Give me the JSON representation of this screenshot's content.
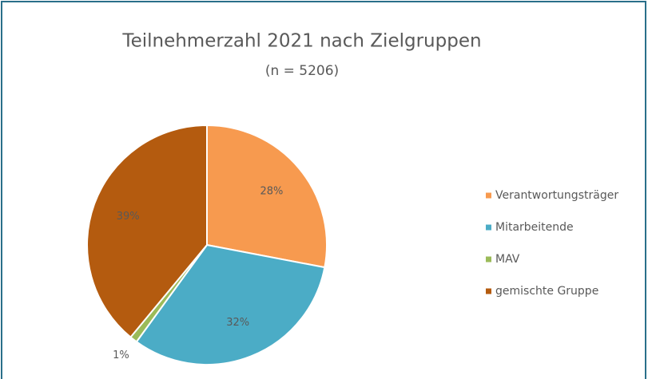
{
  "chart_data": {
    "type": "pie",
    "title": "Teilnehmerzahl 2021 nach Zielgruppen",
    "subtitle": "(n = 5206)",
    "categories": [
      "Verantwortungsträger",
      "Mitarbeitende",
      "MAV",
      "gemischte Gruppe"
    ],
    "values": [
      28,
      32,
      1,
      39
    ],
    "value_labels": [
      "28%",
      "32%",
      "1%",
      "39%"
    ],
    "colors": [
      "#f79a4f",
      "#4bacc6",
      "#9bbb59",
      "#b45b0f"
    ],
    "legend": "right"
  }
}
